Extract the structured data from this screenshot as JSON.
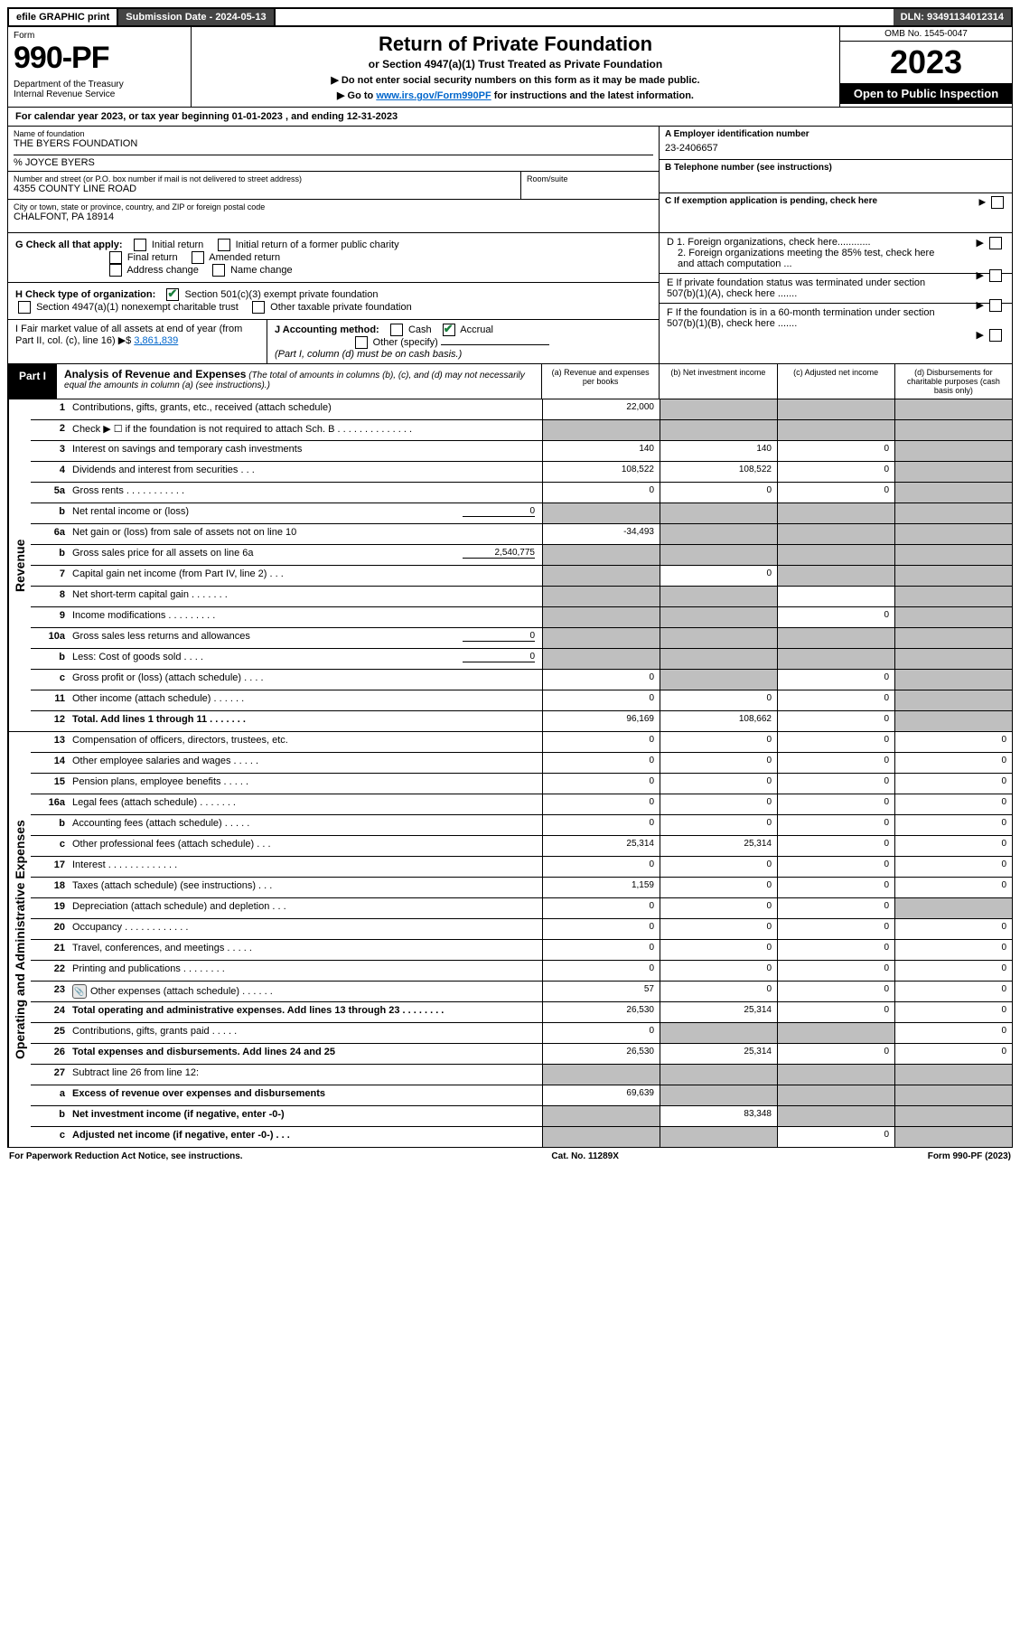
{
  "topbar": {
    "efile": "efile GRAPHIC print",
    "submission": "Submission Date - 2024-05-13",
    "dln": "DLN: 93491134012314"
  },
  "header": {
    "form_label": "Form",
    "form_no": "990-PF",
    "dept": "Department of the Treasury\nInternal Revenue Service",
    "title": "Return of Private Foundation",
    "subtitle": "or Section 4947(a)(1) Trust Treated as Private Foundation",
    "note1": "▶ Do not enter social security numbers on this form as it may be made public.",
    "note2_pre": "▶ Go to ",
    "note2_link": "www.irs.gov/Form990PF",
    "note2_post": " for instructions and the latest information.",
    "omb": "OMB No. 1545-0047",
    "year": "2023",
    "open_insp": "Open to Public Inspection"
  },
  "cal_year": "For calendar year 2023, or tax year beginning 01-01-2023                                           , and ending 12-31-2023",
  "info": {
    "name_lbl": "Name of foundation",
    "name_val": "THE BYERS FOUNDATION",
    "care_of": "% JOYCE BYERS",
    "addr_lbl": "Number and street (or P.O. box number if mail is not delivered to street address)",
    "addr_val": "4355 COUNTY LINE ROAD",
    "room_lbl": "Room/suite",
    "city_lbl": "City or town, state or province, country, and ZIP or foreign postal code",
    "city_val": "CHALFONT, PA  18914",
    "a_lbl": "A Employer identification number",
    "a_val": "23-2406657",
    "b_lbl": "B Telephone number (see instructions)",
    "c_lbl": "C If exemption application is pending, check here",
    "d1": "D 1. Foreign organizations, check here............",
    "d2": "2. Foreign organizations meeting the 85% test, check here and attach computation ...",
    "e_lbl": "E  If private foundation status was terminated under section 507(b)(1)(A), check here .......",
    "f_lbl": "F  If the foundation is in a 60-month termination under section 507(b)(1)(B), check here .......",
    "g_lbl": "G Check all that apply:",
    "g_opts": [
      "Initial return",
      "Initial return of a former public charity",
      "Final return",
      "Amended return",
      "Address change",
      "Name change"
    ],
    "h_lbl": "H Check type of organization:",
    "h_opts": [
      "Section 501(c)(3) exempt private foundation",
      "Section 4947(a)(1) nonexempt charitable trust",
      "Other taxable private foundation"
    ],
    "i_lbl": "I Fair market value of all assets at end of year (from Part II, col. (c), line 16) ▶$ ",
    "i_val": "3,861,839",
    "j_lbl": "J Accounting method:",
    "j_opts": [
      "Cash",
      "Accrual",
      "Other (specify)"
    ],
    "j_note": "(Part I, column (d) must be on cash basis.)"
  },
  "part1": {
    "label": "Part I",
    "title": "Analysis of Revenue and Expenses",
    "subtitle": "(The total of amounts in columns (b), (c), and (d) may not necessarily equal the amounts in column (a) (see instructions).)",
    "cols": [
      "(a)   Revenue and expenses per books",
      "(b)   Net investment income",
      "(c)   Adjusted net income",
      "(d)   Disbursements for charitable purposes (cash basis only)"
    ]
  },
  "side_labels": {
    "revenue": "Revenue",
    "expenses": "Operating and Administrative Expenses"
  },
  "rows": [
    {
      "ln": "1",
      "desc": "Contributions, gifts, grants, etc., received (attach schedule)",
      "a": "22,000",
      "b": "",
      "c": "",
      "d": "",
      "grey": [
        1,
        2,
        3
      ]
    },
    {
      "ln": "2",
      "desc": "Check ▶ ☐ if the foundation is not required to attach Sch. B   .   .   .   .   .   .   .   .   .   .   .   .   .   .",
      "grey": [
        0,
        1,
        2,
        3
      ],
      "greyfull": true
    },
    {
      "ln": "3",
      "desc": "Interest on savings and temporary cash investments",
      "a": "140",
      "b": "140",
      "c": "0",
      "d": "",
      "grey": [
        3
      ]
    },
    {
      "ln": "4",
      "desc": "Dividends and interest from securities   .   .   .",
      "a": "108,522",
      "b": "108,522",
      "c": "0",
      "d": "",
      "grey": [
        3
      ]
    },
    {
      "ln": "5a",
      "desc": "Gross rents   .   .   .   .   .   .   .   .   .   .   .",
      "a": "0",
      "b": "0",
      "c": "0",
      "d": "",
      "grey": [
        3
      ]
    },
    {
      "ln": "b",
      "desc": "Net rental income or (loss)",
      "inline": "0",
      "grey": [
        0,
        1,
        2,
        3
      ],
      "greyfull": true
    },
    {
      "ln": "6a",
      "desc": "Net gain or (loss) from sale of assets not on line 10",
      "a": "-34,493",
      "b": "",
      "c": "",
      "d": "",
      "grey": [
        1,
        2,
        3
      ]
    },
    {
      "ln": "b",
      "desc": "Gross sales price for all assets on line 6a",
      "inline": "2,540,775",
      "grey": [
        0,
        1,
        2,
        3
      ],
      "greyfull": true
    },
    {
      "ln": "7",
      "desc": "Capital gain net income (from Part IV, line 2)   .   .   .",
      "a": "",
      "b": "0",
      "c": "",
      "d": "",
      "grey": [
        0,
        2,
        3
      ]
    },
    {
      "ln": "8",
      "desc": "Net short-term capital gain   .   .   .   .   .   .   .",
      "a": "",
      "b": "",
      "c": "",
      "d": "",
      "grey": [
        0,
        1,
        3
      ]
    },
    {
      "ln": "9",
      "desc": "Income modifications   .   .   .   .   .   .   .   .   .",
      "a": "",
      "b": "",
      "c": "0",
      "d": "",
      "grey": [
        0,
        1,
        3
      ]
    },
    {
      "ln": "10a",
      "desc": "Gross sales less returns and allowances",
      "inline": "0",
      "grey": [
        0,
        1,
        2,
        3
      ],
      "greyfull": true
    },
    {
      "ln": "b",
      "desc": "Less: Cost of goods sold   .   .   .   .",
      "inline": "0",
      "grey": [
        0,
        1,
        2,
        3
      ],
      "greyfull": true
    },
    {
      "ln": "c",
      "desc": "Gross profit or (loss) (attach schedule)   .   .   .   .",
      "a": "0",
      "b": "",
      "c": "0",
      "d": "",
      "grey": [
        1,
        3
      ]
    },
    {
      "ln": "11",
      "desc": "Other income (attach schedule)   .   .   .   .   .   .",
      "a": "0",
      "b": "0",
      "c": "0",
      "d": "",
      "grey": [
        3
      ]
    },
    {
      "ln": "12",
      "desc": "Total. Add lines 1 through 11   .   .   .   .   .   .   .",
      "bold": true,
      "a": "96,169",
      "b": "108,662",
      "c": "0",
      "d": "",
      "grey": [
        3
      ]
    },
    {
      "ln": "13",
      "desc": "Compensation of officers, directors, trustees, etc.",
      "a": "0",
      "b": "0",
      "c": "0",
      "d": "0"
    },
    {
      "ln": "14",
      "desc": "Other employee salaries and wages   .   .   .   .   .",
      "a": "0",
      "b": "0",
      "c": "0",
      "d": "0"
    },
    {
      "ln": "15",
      "desc": "Pension plans, employee benefits   .   .   .   .   .",
      "a": "0",
      "b": "0",
      "c": "0",
      "d": "0"
    },
    {
      "ln": "16a",
      "desc": "Legal fees (attach schedule)   .   .   .   .   .   .   .",
      "a": "0",
      "b": "0",
      "c": "0",
      "d": "0"
    },
    {
      "ln": "b",
      "desc": "Accounting fees (attach schedule)   .   .   .   .   .",
      "a": "0",
      "b": "0",
      "c": "0",
      "d": "0"
    },
    {
      "ln": "c",
      "desc": "Other professional fees (attach schedule)   .   .   .",
      "a": "25,314",
      "b": "25,314",
      "c": "0",
      "d": "0"
    },
    {
      "ln": "17",
      "desc": "Interest   .   .   .   .   .   .   .   .   .   .   .   .   .",
      "a": "0",
      "b": "0",
      "c": "0",
      "d": "0"
    },
    {
      "ln": "18",
      "desc": "Taxes (attach schedule) (see instructions)   .   .   .",
      "a": "1,159",
      "b": "0",
      "c": "0",
      "d": "0"
    },
    {
      "ln": "19",
      "desc": "Depreciation (attach schedule) and depletion   .   .   .",
      "a": "0",
      "b": "0",
      "c": "0",
      "d": "",
      "grey": [
        3
      ]
    },
    {
      "ln": "20",
      "desc": "Occupancy   .   .   .   .   .   .   .   .   .   .   .   .",
      "a": "0",
      "b": "0",
      "c": "0",
      "d": "0"
    },
    {
      "ln": "21",
      "desc": "Travel, conferences, and meetings   .   .   .   .   .",
      "a": "0",
      "b": "0",
      "c": "0",
      "d": "0"
    },
    {
      "ln": "22",
      "desc": "Printing and publications   .   .   .   .   .   .   .   .",
      "a": "0",
      "b": "0",
      "c": "0",
      "d": "0"
    },
    {
      "ln": "23",
      "desc": "Other expenses (attach schedule)   .   .   .   .   .   .",
      "a": "57",
      "b": "0",
      "c": "0",
      "d": "0",
      "attach": true
    },
    {
      "ln": "24",
      "desc": "Total operating and administrative expenses. Add lines 13 through 23   .   .   .   .   .   .   .   .",
      "bold": true,
      "a": "26,530",
      "b": "25,314",
      "c": "0",
      "d": "0"
    },
    {
      "ln": "25",
      "desc": "Contributions, gifts, grants paid   .   .   .   .   .",
      "a": "0",
      "b": "",
      "c": "",
      "d": "0",
      "grey": [
        1,
        2
      ]
    },
    {
      "ln": "26",
      "desc": "Total expenses and disbursements. Add lines 24 and 25",
      "bold": true,
      "a": "26,530",
      "b": "25,314",
      "c": "0",
      "d": "0"
    },
    {
      "ln": "27",
      "desc": "Subtract line 26 from line 12:",
      "grey": [
        0,
        1,
        2,
        3
      ],
      "greyfull": true
    },
    {
      "ln": "a",
      "desc": "Excess of revenue over expenses and disbursements",
      "bold": true,
      "a": "69,639",
      "b": "",
      "c": "",
      "d": "",
      "grey": [
        1,
        2,
        3
      ]
    },
    {
      "ln": "b",
      "desc": "Net investment income (if negative, enter -0-)",
      "bold": true,
      "a": "",
      "b": "83,348",
      "c": "",
      "d": "",
      "grey": [
        0,
        2,
        3
      ]
    },
    {
      "ln": "c",
      "desc": "Adjusted net income (if negative, enter -0-)   .   .   .",
      "bold": true,
      "a": "",
      "b": "",
      "c": "0",
      "d": "",
      "grey": [
        0,
        1,
        3
      ]
    }
  ],
  "revenue_end": 16,
  "expenses_start": 16,
  "footer": {
    "left": "For Paperwork Reduction Act Notice, see instructions.",
    "mid": "Cat. No. 11289X",
    "right": "Form 990-PF (2023)"
  }
}
